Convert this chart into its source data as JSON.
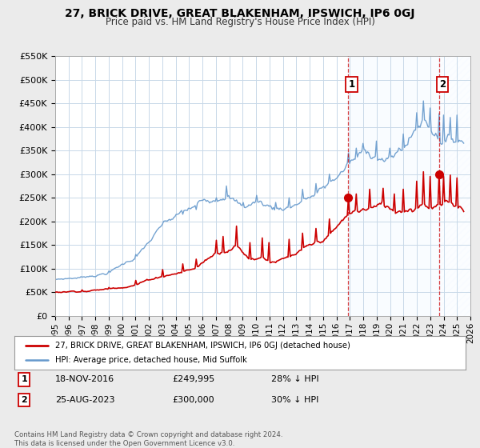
{
  "title": "27, BRICK DRIVE, GREAT BLAKENHAM, IPSWICH, IP6 0GJ",
  "subtitle": "Price paid vs. HM Land Registry's House Price Index (HPI)",
  "background_color": "#ebebeb",
  "plot_bg_color": "#ffffff",
  "grid_color": "#c8d8e8",
  "xmin": 1995,
  "xmax": 2026,
  "ymin": 0,
  "ymax": 550000,
  "yticks": [
    0,
    50000,
    100000,
    150000,
    200000,
    250000,
    300000,
    350000,
    400000,
    450000,
    500000,
    550000
  ],
  "ytick_labels": [
    "£0",
    "£50K",
    "£100K",
    "£150K",
    "£200K",
    "£250K",
    "£300K",
    "£350K",
    "£400K",
    "£450K",
    "£500K",
    "£550K"
  ],
  "xticks": [
    1995,
    1996,
    1997,
    1998,
    1999,
    2000,
    2001,
    2002,
    2003,
    2004,
    2005,
    2006,
    2007,
    2008,
    2009,
    2010,
    2011,
    2012,
    2013,
    2014,
    2015,
    2016,
    2017,
    2018,
    2019,
    2020,
    2021,
    2022,
    2023,
    2024,
    2025,
    2026
  ],
  "sale1_x": 2016.88,
  "sale1_y": 249995,
  "sale2_x": 2023.65,
  "sale2_y": 300000,
  "sale1_date": "18-NOV-2016",
  "sale1_price": "£249,995",
  "sale1_hpi": "28% ↓ HPI",
  "sale2_date": "25-AUG-2023",
  "sale2_price": "£300,000",
  "sale2_hpi": "30% ↓ HPI",
  "red_color": "#cc0000",
  "blue_color": "#6699cc",
  "shade_color": "#ddeeff",
  "legend_label_red": "27, BRICK DRIVE, GREAT BLAKENHAM, IPSWICH, IP6 0GJ (detached house)",
  "legend_label_blue": "HPI: Average price, detached house, Mid Suffolk",
  "footer_text": "Contains HM Land Registry data © Crown copyright and database right 2024.\nThis data is licensed under the Open Government Licence v3.0."
}
